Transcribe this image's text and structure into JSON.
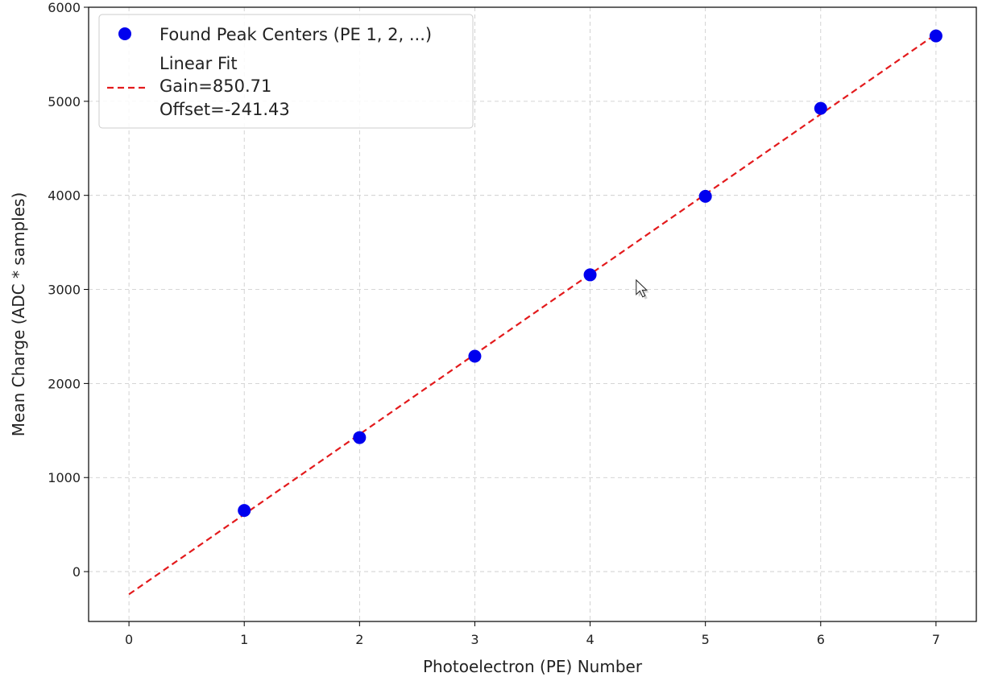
{
  "chart_data": {
    "type": "scatter",
    "title": "",
    "xlabel": "Photoelectron (PE) Number",
    "ylabel": "Mean Charge (ADC * samples)",
    "xlim": [
      -0.35,
      7.35
    ],
    "ylim": [
      -530,
      6000
    ],
    "x_ticks": [
      0,
      1,
      2,
      3,
      4,
      5,
      6,
      7
    ],
    "y_ticks": [
      0,
      1000,
      2000,
      3000,
      4000,
      5000,
      6000
    ],
    "grid": true,
    "grid_style": "dashed",
    "legend_placement": "top-left",
    "series": [
      {
        "name": "Found Peak Centers (PE 1, 2, ...)",
        "kind": "scatter",
        "color": "#0000ee",
        "x": [
          1,
          2,
          3,
          4,
          5,
          6,
          7
        ],
        "y": [
          650,
          1425,
          2290,
          3155,
          3990,
          4925,
          5695
        ]
      },
      {
        "name_lines": [
          "Linear Fit",
          "Gain=850.71",
          "Offset=-241.43"
        ],
        "kind": "line",
        "style": "dashed",
        "color": "#e31a1c",
        "gain": 850.71,
        "offset": -241.43,
        "x_range": [
          0,
          7
        ]
      }
    ]
  },
  "cursor": {
    "icon": "mouse-pointer-icon",
    "x": 4.4,
    "y": 3100
  }
}
